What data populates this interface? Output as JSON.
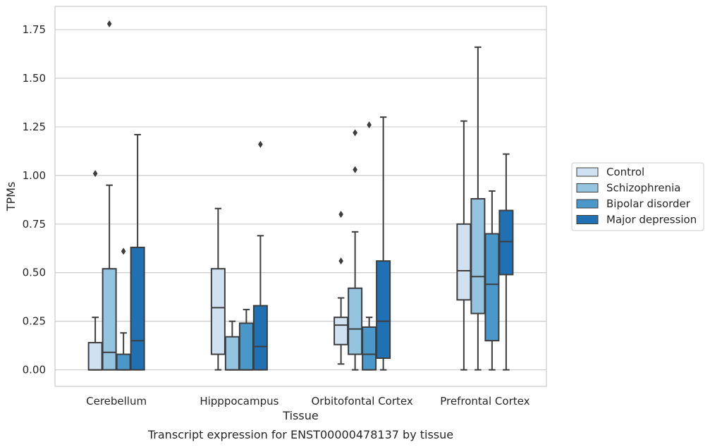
{
  "chart_data": {
    "type": "box",
    "xlabel": "Tissue",
    "ylabel": "TPMs",
    "caption": "Transcript expression for ENST00000478137 by tissue",
    "ylim": [
      -0.085,
      1.87
    ],
    "yticks": [
      0.0,
      0.25,
      0.5,
      0.75,
      1.0,
      1.25,
      1.5,
      1.75
    ],
    "ytick_labels": [
      "0.00",
      "0.25",
      "0.50",
      "0.75",
      "1.00",
      "1.25",
      "1.50",
      "1.75"
    ],
    "categories": [
      "Cerebellum",
      "Hipppocampus",
      "Orbitofontal Cortex",
      "Prefrontal Cortex"
    ],
    "grid": "y",
    "legend_position": "right",
    "series": [
      {
        "name": "Control",
        "color": "#d0e1f2",
        "boxes": [
          {
            "whislo": 0.0,
            "q1": 0.0,
            "med": 0.0,
            "q3": 0.14,
            "whishi": 0.27,
            "fliers": [
              1.01
            ]
          },
          {
            "whislo": 0.0,
            "q1": 0.08,
            "med": 0.32,
            "q3": 0.52,
            "whishi": 0.83,
            "fliers": []
          },
          {
            "whislo": 0.03,
            "q1": 0.13,
            "med": 0.23,
            "q3": 0.27,
            "whishi": 0.37,
            "fliers": [
              0.56,
              0.8
            ]
          },
          {
            "whislo": 0.0,
            "q1": 0.36,
            "med": 0.51,
            "q3": 0.75,
            "whishi": 1.28,
            "fliers": []
          }
        ]
      },
      {
        "name": "Schizophrenia",
        "color": "#94c4df",
        "boxes": [
          {
            "whislo": 0.0,
            "q1": 0.0,
            "med": 0.09,
            "q3": 0.52,
            "whishi": 0.95,
            "fliers": [
              1.78
            ]
          },
          {
            "whislo": 0.0,
            "q1": 0.0,
            "med": 0.0,
            "q3": 0.17,
            "whishi": 0.25,
            "fliers": []
          },
          {
            "whislo": 0.0,
            "q1": 0.08,
            "med": 0.21,
            "q3": 0.42,
            "whishi": 0.71,
            "fliers": [
              1.03,
              1.22
            ]
          },
          {
            "whislo": 0.0,
            "q1": 0.29,
            "med": 0.48,
            "q3": 0.88,
            "whishi": 1.66,
            "fliers": []
          }
        ]
      },
      {
        "name": "Bipolar disorder",
        "color": "#4a98c9",
        "boxes": [
          {
            "whislo": 0.0,
            "q1": 0.0,
            "med": 0.0,
            "q3": 0.08,
            "whishi": 0.19,
            "fliers": [
              0.61
            ]
          },
          {
            "whislo": 0.0,
            "q1": 0.0,
            "med": 0.0,
            "q3": 0.24,
            "whishi": 0.31,
            "fliers": []
          },
          {
            "whislo": 0.0,
            "q1": 0.0,
            "med": 0.08,
            "q3": 0.22,
            "whishi": 0.27,
            "fliers": [
              1.26
            ]
          },
          {
            "whislo": 0.0,
            "q1": 0.15,
            "med": 0.44,
            "q3": 0.7,
            "whishi": 0.92,
            "fliers": []
          }
        ]
      },
      {
        "name": "Major depression",
        "color": "#2070b4",
        "boxes": [
          {
            "whislo": 0.0,
            "q1": 0.0,
            "med": 0.15,
            "q3": 0.63,
            "whishi": 1.21,
            "fliers": []
          },
          {
            "whislo": 0.0,
            "q1": 0.0,
            "med": 0.12,
            "q3": 0.33,
            "whishi": 0.69,
            "fliers": [
              1.16
            ]
          },
          {
            "whislo": 0.0,
            "q1": 0.06,
            "med": 0.25,
            "q3": 0.56,
            "whishi": 1.3,
            "fliers": []
          },
          {
            "whislo": 0.0,
            "q1": 0.49,
            "med": 0.66,
            "q3": 0.82,
            "whishi": 1.11,
            "fliers": []
          }
        ]
      }
    ]
  }
}
